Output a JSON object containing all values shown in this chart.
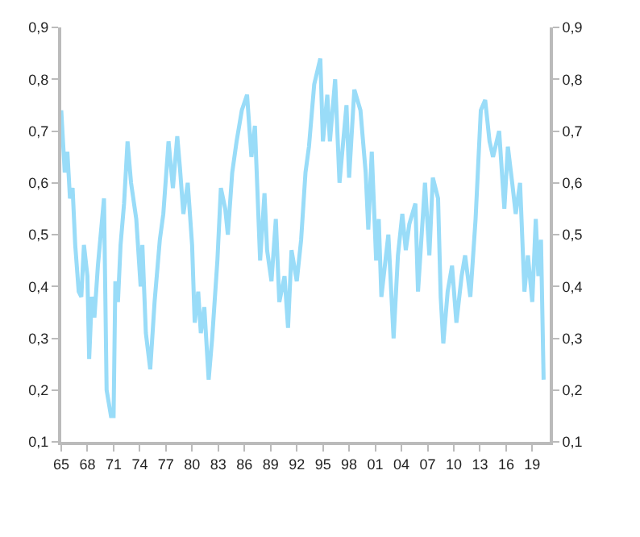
{
  "chart_data": {
    "type": "line",
    "xlim": [
      1965,
      2021
    ],
    "xticks": [
      {
        "value": 1965,
        "label": "65"
      },
      {
        "value": 1968,
        "label": "68"
      },
      {
        "value": 1971,
        "label": "71"
      },
      {
        "value": 1974,
        "label": "74"
      },
      {
        "value": 1977,
        "label": "77"
      },
      {
        "value": 1980,
        "label": "80"
      },
      {
        "value": 1983,
        "label": "83"
      },
      {
        "value": 1986,
        "label": "86"
      },
      {
        "value": 1989,
        "label": "89"
      },
      {
        "value": 1992,
        "label": "92"
      },
      {
        "value": 1995,
        "label": "95"
      },
      {
        "value": 1998,
        "label": "98"
      },
      {
        "value": 2001,
        "label": "01"
      },
      {
        "value": 2004,
        "label": "04"
      },
      {
        "value": 2007,
        "label": "07"
      },
      {
        "value": 2010,
        "label": "10"
      },
      {
        "value": 2013,
        "label": "13"
      },
      {
        "value": 2016,
        "label": "16"
      },
      {
        "value": 2019,
        "label": "19"
      }
    ],
    "ylim": [
      0.1,
      0.9
    ],
    "yticks": [
      {
        "value": 0.1,
        "label": "0,1"
      },
      {
        "value": 0.2,
        "label": "0,2"
      },
      {
        "value": 0.3,
        "label": "0,3"
      },
      {
        "value": 0.4,
        "label": "0,4"
      },
      {
        "value": 0.5,
        "label": "0,5"
      },
      {
        "value": 0.6,
        "label": "0,6"
      },
      {
        "value": 0.7,
        "label": "0,7"
      },
      {
        "value": 0.8,
        "label": "0,8"
      },
      {
        "value": 0.9,
        "label": "0,9"
      }
    ],
    "y2lim": [
      0.1,
      0.9
    ],
    "y2ticks": [
      {
        "value": 0.1,
        "label": "0,1"
      },
      {
        "value": 0.2,
        "label": "0,2"
      },
      {
        "value": 0.3,
        "label": "0,3"
      },
      {
        "value": 0.4,
        "label": "0,4"
      },
      {
        "value": 0.5,
        "label": "0,5"
      },
      {
        "value": 0.6,
        "label": "0,6"
      },
      {
        "value": 0.7,
        "label": "0,7"
      },
      {
        "value": 0.8,
        "label": "0,8"
      },
      {
        "value": 0.9,
        "label": "0,9"
      }
    ],
    "marker": "none",
    "line_style": "solid",
    "series": [
      {
        "color": "#99dcf8",
        "x": [
          1965.0,
          1965.4,
          1965.7,
          1966.0,
          1966.3,
          1966.6,
          1967.0,
          1967.3,
          1967.6,
          1968.0,
          1968.2,
          1968.5,
          1968.8,
          1969.2,
          1969.9,
          1970.2,
          1970.7,
          1971.0,
          1971.2,
          1971.5,
          1971.8,
          1972.2,
          1972.6,
          1973.0,
          1973.6,
          1974.1,
          1974.3,
          1974.7,
          1975.2,
          1975.7,
          1976.3,
          1976.7,
          1977.3,
          1977.8,
          1978.3,
          1978.6,
          1979.0,
          1979.5,
          1980.0,
          1980.3,
          1980.7,
          1981.0,
          1981.4,
          1981.9,
          1982.3,
          1982.9,
          1983.3,
          1983.8,
          1984.1,
          1984.6,
          1985.1,
          1985.7,
          1986.3,
          1986.8,
          1987.2,
          1987.8,
          1988.3,
          1988.6,
          1989.1,
          1989.6,
          1990.0,
          1990.6,
          1991.0,
          1991.4,
          1992.0,
          1992.5,
          1993.0,
          1993.4,
          1994.0,
          1994.7,
          1995.0,
          1995.5,
          1995.8,
          1996.4,
          1996.9,
          1997.7,
          1998.0,
          1998.6,
          1999.3,
          1999.9,
          2000.2,
          2000.6,
          2001.1,
          2001.4,
          2001.7,
          2002.5,
          2003.1,
          2003.6,
          2004.1,
          2004.5,
          2004.9,
          2005.6,
          2005.9,
          2006.7,
          2007.2,
          2007.6,
          2008.2,
          2008.5,
          2008.8,
          2009.3,
          2009.8,
          2010.3,
          2010.9,
          2011.3,
          2011.9,
          2012.5,
          2013.1,
          2013.6,
          2014.1,
          2014.5,
          2015.2,
          2015.8,
          2016.2,
          2016.7,
          2017.1,
          2017.6,
          2018.1,
          2018.5,
          2019.0,
          2019.4,
          2019.7,
          2020.0,
          2020.3
        ],
        "values": [
          0.74,
          0.62,
          0.66,
          0.57,
          0.59,
          0.48,
          0.39,
          0.38,
          0.48,
          0.42,
          0.26,
          0.38,
          0.34,
          0.44,
          0.57,
          0.2,
          0.15,
          0.15,
          0.41,
          0.37,
          0.48,
          0.56,
          0.68,
          0.6,
          0.53,
          0.4,
          0.48,
          0.31,
          0.24,
          0.37,
          0.49,
          0.54,
          0.68,
          0.59,
          0.69,
          0.63,
          0.54,
          0.6,
          0.48,
          0.33,
          0.39,
          0.31,
          0.36,
          0.22,
          0.3,
          0.45,
          0.59,
          0.55,
          0.5,
          0.62,
          0.68,
          0.74,
          0.77,
          0.65,
          0.71,
          0.45,
          0.58,
          0.47,
          0.41,
          0.53,
          0.37,
          0.42,
          0.32,
          0.47,
          0.41,
          0.49,
          0.62,
          0.67,
          0.79,
          0.84,
          0.68,
          0.77,
          0.68,
          0.8,
          0.6,
          0.75,
          0.61,
          0.78,
          0.74,
          0.62,
          0.51,
          0.66,
          0.45,
          0.53,
          0.38,
          0.5,
          0.3,
          0.46,
          0.54,
          0.47,
          0.52,
          0.56,
          0.39,
          0.6,
          0.46,
          0.61,
          0.57,
          0.38,
          0.29,
          0.39,
          0.44,
          0.33,
          0.42,
          0.46,
          0.38,
          0.53,
          0.74,
          0.76,
          0.68,
          0.65,
          0.7,
          0.55,
          0.67,
          0.6,
          0.54,
          0.6,
          0.39,
          0.46,
          0.37,
          0.53,
          0.42,
          0.49,
          0.22
        ]
      }
    ]
  }
}
